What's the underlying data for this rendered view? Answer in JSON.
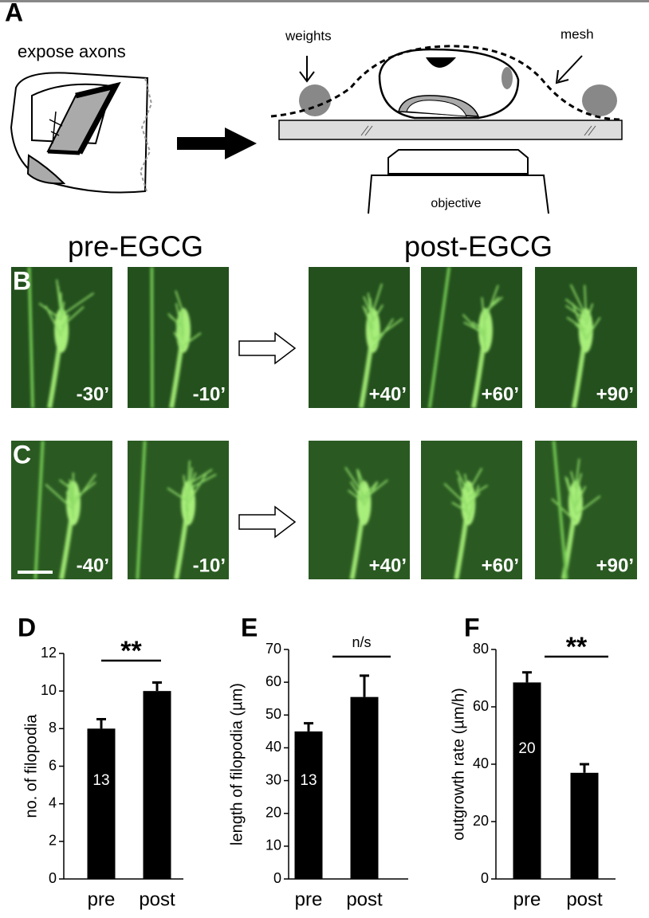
{
  "panel_a": {
    "label": "A",
    "caption": "expose axons",
    "weights": "weights",
    "mesh": "mesh",
    "objective": "objective"
  },
  "imaging": {
    "pre_title": "pre-EGCG",
    "post_title": "post-EGCG",
    "rows": [
      {
        "label": "B",
        "times": [
          "-30’",
          "-10’",
          "+40’",
          "+60’",
          "+90’"
        ]
      },
      {
        "label": "C",
        "times": [
          "-40’",
          "-10’",
          "+40’",
          "+60’",
          "+90’"
        ]
      }
    ]
  },
  "chart_data": [
    {
      "type": "bar",
      "panel": "D",
      "ylabel": "no. of filopodia",
      "categories": [
        "pre",
        "post"
      ],
      "values": [
        8.0,
        10.0
      ],
      "errors": [
        0.5,
        0.45
      ],
      "color": "#000000",
      "ylim": [
        0,
        12
      ],
      "yticks": [
        0,
        2,
        4,
        6,
        8,
        10,
        12
      ],
      "n_label": "13",
      "significance": "**"
    },
    {
      "type": "bar",
      "panel": "E",
      "ylabel": "length of filopodia (µm)",
      "categories": [
        "pre",
        "post"
      ],
      "values": [
        45,
        55.5
      ],
      "errors": [
        2.5,
        6.5
      ],
      "color": "#000000",
      "ylim": [
        0,
        70
      ],
      "yticks": [
        0,
        10,
        20,
        30,
        40,
        50,
        60,
        70
      ],
      "n_label": "13",
      "significance": "n/s"
    },
    {
      "type": "bar",
      "panel": "F",
      "ylabel": "outgrowth rate (µm/h)",
      "categories": [
        "pre",
        "post"
      ],
      "values": [
        68.5,
        37
      ],
      "errors": [
        3.5,
        3
      ],
      "color": "#000000",
      "ylim": [
        0,
        80
      ],
      "yticks": [
        0,
        20,
        40,
        60,
        80
      ],
      "n_label": "20",
      "significance": "**"
    }
  ]
}
